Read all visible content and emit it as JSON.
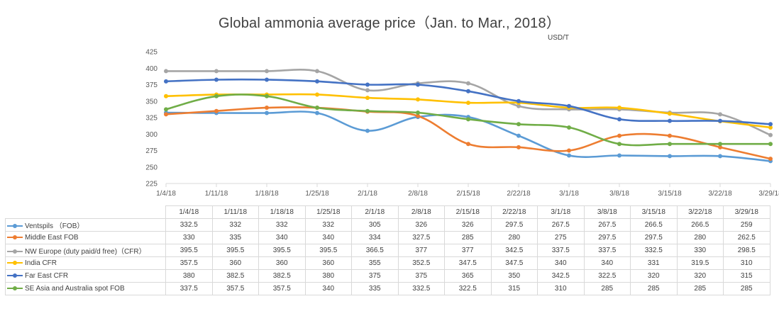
{
  "title": "Global ammonia average price（Jan. to Mar., 2018）",
  "unit": "USD/T",
  "chart_data": {
    "type": "line",
    "title": "Global ammonia average price（Jan. to Mar., 2018）",
    "ylabel": "USD/T",
    "xlabel": "",
    "ylim": [
      225,
      425
    ],
    "yticks": [
      225,
      250,
      275,
      300,
      325,
      350,
      375,
      400,
      425
    ],
    "categories": [
      "1/4/18",
      "1/11/18",
      "1/18/18",
      "1/25/18",
      "2/1/18",
      "2/8/18",
      "2/15/18",
      "2/22/18",
      "3/1/18",
      "3/8/18",
      "3/15/18",
      "3/22/18",
      "3/29/18"
    ],
    "series": [
      {
        "name": "Ventspils （FOB）",
        "color": "#5b9bd5",
        "values": [
          332.5,
          332,
          332,
          332,
          305,
          326,
          326,
          297.5,
          267.5,
          267.5,
          266.5,
          266.5,
          259
        ]
      },
      {
        "name": "Middle East FOB",
        "color": "#ed7d31",
        "values": [
          330,
          335,
          340,
          340,
          334,
          327.5,
          285,
          280,
          275,
          297.5,
          297.5,
          280,
          262.5
        ]
      },
      {
        "name": "NW Europe (duty paid/d free)（CFR）",
        "color": "#a5a5a5",
        "values": [
          395.5,
          395.5,
          395.5,
          395.5,
          366.5,
          377,
          377,
          342.5,
          337.5,
          337.5,
          332.5,
          330,
          298.5
        ]
      },
      {
        "name": "India CFR",
        "color": "#ffc000",
        "values": [
          357.5,
          360,
          360,
          360,
          355,
          352.5,
          347.5,
          347.5,
          340,
          340,
          331,
          319.5,
          310
        ]
      },
      {
        "name": "Far East CFR",
        "color": "#4472c4",
        "values": [
          380,
          382.5,
          382.5,
          380,
          375,
          375,
          365,
          350,
          342.5,
          322.5,
          320,
          320,
          315
        ]
      },
      {
        "name": "SE Asia and Australia spot FOB",
        "color": "#70ad47",
        "values": [
          337.5,
          357.5,
          357.5,
          340,
          335,
          332.5,
          322.5,
          315,
          310,
          285,
          285,
          285,
          285
        ]
      }
    ]
  }
}
